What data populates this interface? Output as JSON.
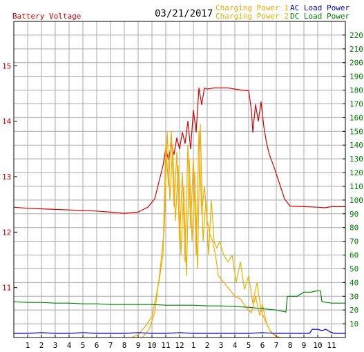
{
  "header": {
    "left_title": "Battery Voltage",
    "date": "03/21/2017",
    "legend_charging1": "Charging Power 1",
    "legend_charging2": "Charging Power 2",
    "legend_ac": "AC Load Power",
    "legend_dc": "DC Load Power"
  },
  "colors": {
    "battery": "#d40000",
    "charging1": "#ffa500",
    "charging2": "#e6b400",
    "ac": "#0000cc",
    "dc": "#008000",
    "grid": "#a8a8a8",
    "axis_left": "#cc0000",
    "axis_right": "#008000"
  },
  "chart_data": {
    "type": "line",
    "x_range": [
      0,
      24
    ],
    "x_tick_labels": [
      "1",
      "2",
      "3",
      "4",
      "5",
      "6",
      "7",
      "8",
      "9",
      "10",
      "11",
      "12",
      "1",
      "2",
      "3",
      "4",
      "5",
      "6",
      "7",
      "8",
      "9",
      "10",
      "11"
    ],
    "y_left": {
      "range": [
        10.1,
        15.8
      ],
      "tick_labels": [
        "11",
        "12",
        "13",
        "14",
        "15"
      ]
    },
    "y_right": {
      "range": [
        0,
        230
      ],
      "tick_labels": [
        "10",
        "20",
        "30",
        "40",
        "50",
        "60",
        "70",
        "80",
        "90",
        "100",
        "110",
        "120",
        "130",
        "140",
        "150",
        "160",
        "170",
        "180",
        "190",
        "200",
        "210",
        "220"
      ]
    },
    "grid": true,
    "series": [
      {
        "name": "Battery Voltage",
        "axis": "left",
        "color_key": "battery",
        "points": [
          [
            0,
            12.45
          ],
          [
            1,
            12.43
          ],
          [
            2,
            12.42
          ],
          [
            3,
            12.41
          ],
          [
            4,
            12.4
          ],
          [
            5,
            12.39
          ],
          [
            6,
            12.38
          ],
          [
            7,
            12.36
          ],
          [
            8,
            12.34
          ],
          [
            9,
            12.36
          ],
          [
            9.7,
            12.45
          ],
          [
            10.2,
            12.6
          ],
          [
            10.5,
            12.9
          ],
          [
            10.8,
            13.2
          ],
          [
            11.0,
            13.5
          ],
          [
            11.2,
            13.3
          ],
          [
            11.4,
            13.6
          ],
          [
            11.6,
            13.4
          ],
          [
            11.8,
            13.7
          ],
          [
            12.0,
            13.5
          ],
          [
            12.2,
            13.8
          ],
          [
            12.4,
            13.6
          ],
          [
            12.6,
            14.0
          ],
          [
            12.8,
            13.5
          ],
          [
            13.0,
            14.2
          ],
          [
            13.2,
            13.8
          ],
          [
            13.4,
            14.6
          ],
          [
            13.6,
            14.3
          ],
          [
            13.8,
            14.6
          ],
          [
            14.0,
            14.58
          ],
          [
            14.5,
            14.6
          ],
          [
            15,
            14.6
          ],
          [
            15.5,
            14.6
          ],
          [
            16,
            14.58
          ],
          [
            16.5,
            14.56
          ],
          [
            17,
            14.55
          ],
          [
            17.2,
            14.2
          ],
          [
            17.3,
            13.8
          ],
          [
            17.5,
            14.3
          ],
          [
            17.7,
            14.0
          ],
          [
            17.9,
            14.35
          ],
          [
            18.1,
            13.9
          ],
          [
            18.3,
            13.6
          ],
          [
            18.5,
            13.4
          ],
          [
            18.8,
            13.2
          ],
          [
            19.2,
            12.9
          ],
          [
            19.6,
            12.6
          ],
          [
            20,
            12.47
          ],
          [
            21,
            12.46
          ],
          [
            22,
            12.45
          ],
          [
            22.5,
            12.44
          ],
          [
            23,
            12.46
          ],
          [
            24,
            12.46
          ]
        ]
      },
      {
        "name": "Charging Power 1",
        "axis": "right",
        "color_key": "charging1",
        "points": [
          [
            8.5,
            0
          ],
          [
            9,
            2
          ],
          [
            9.5,
            8
          ],
          [
            10,
            15
          ],
          [
            10.5,
            40
          ],
          [
            10.8,
            60
          ],
          [
            11.0,
            140
          ],
          [
            11.2,
            110
          ],
          [
            11.4,
            150
          ],
          [
            11.6,
            95
          ],
          [
            11.8,
            135
          ],
          [
            12.0,
            70
          ],
          [
            12.2,
            120
          ],
          [
            12.4,
            55
          ],
          [
            12.6,
            140
          ],
          [
            12.8,
            80
          ],
          [
            13.0,
            130
          ],
          [
            13.2,
            60
          ],
          [
            13.4,
            150
          ],
          [
            13.6,
            90
          ],
          [
            13.8,
            110
          ],
          [
            14.0,
            85
          ],
          [
            14.2,
            75
          ],
          [
            14.4,
            70
          ],
          [
            14.6,
            60
          ],
          [
            14.8,
            45
          ],
          [
            15.2,
            40
          ],
          [
            15.6,
            35
          ],
          [
            16.0,
            30
          ],
          [
            16.4,
            28
          ],
          [
            16.8,
            22
          ],
          [
            17.2,
            18
          ],
          [
            17.5,
            30
          ],
          [
            17.8,
            16
          ],
          [
            18.0,
            24
          ],
          [
            18.3,
            10
          ],
          [
            18.6,
            4
          ],
          [
            19.0,
            1
          ],
          [
            19.3,
            0
          ]
        ]
      },
      {
        "name": "Charging Power 2",
        "axis": "right",
        "color_key": "charging2",
        "points": [
          [
            9.3,
            0
          ],
          [
            9.8,
            6
          ],
          [
            10.2,
            18
          ],
          [
            10.6,
            50
          ],
          [
            10.9,
            80
          ],
          [
            11.1,
            150
          ],
          [
            11.3,
            100
          ],
          [
            11.5,
            140
          ],
          [
            11.7,
            85
          ],
          [
            11.9,
            125
          ],
          [
            12.1,
            60
          ],
          [
            12.3,
            110
          ],
          [
            12.5,
            45
          ],
          [
            12.7,
            130
          ],
          [
            12.9,
            70
          ],
          [
            13.1,
            120
          ],
          [
            13.3,
            50
          ],
          [
            13.5,
            155
          ],
          [
            13.7,
            70
          ],
          [
            13.9,
            100
          ],
          [
            14.1,
            60
          ],
          [
            14.3,
            100
          ],
          [
            14.5,
            70
          ],
          [
            14.7,
            65
          ],
          [
            14.9,
            70
          ],
          [
            15.2,
            60
          ],
          [
            15.5,
            55
          ],
          [
            15.8,
            60
          ],
          [
            16.1,
            40
          ],
          [
            16.4,
            55
          ],
          [
            16.7,
            35
          ],
          [
            17.0,
            45
          ],
          [
            17.3,
            25
          ],
          [
            17.6,
            40
          ],
          [
            17.9,
            20
          ],
          [
            18.2,
            12
          ],
          [
            18.5,
            6
          ],
          [
            18.8,
            2
          ],
          [
            19.1,
            0
          ]
        ]
      },
      {
        "name": "AC Load Power",
        "axis": "right",
        "color_key": "ac",
        "points": [
          [
            0,
            3
          ],
          [
            1,
            3
          ],
          [
            2,
            3.5
          ],
          [
            3,
            3
          ],
          [
            4,
            3
          ],
          [
            5,
            3.5
          ],
          [
            6,
            3
          ],
          [
            7,
            3
          ],
          [
            8,
            3
          ],
          [
            9,
            3.5
          ],
          [
            10,
            3
          ],
          [
            11,
            3
          ],
          [
            12,
            3.5
          ],
          [
            13,
            3
          ],
          [
            14,
            3
          ],
          [
            15,
            3
          ],
          [
            16,
            3
          ],
          [
            17,
            3
          ],
          [
            18,
            3.5
          ],
          [
            19,
            3
          ],
          [
            20,
            3
          ],
          [
            21,
            3
          ],
          [
            21.4,
            3
          ],
          [
            21.6,
            6
          ],
          [
            22,
            6
          ],
          [
            22.3,
            5
          ],
          [
            22.6,
            6
          ],
          [
            22.9,
            4
          ],
          [
            23.2,
            3
          ],
          [
            24,
            3
          ]
        ]
      },
      {
        "name": "DC Load Power",
        "axis": "right",
        "color_key": "dc",
        "points": [
          [
            0,
            26
          ],
          [
            1,
            25.5
          ],
          [
            2,
            25.5
          ],
          [
            3,
            25
          ],
          [
            4,
            25
          ],
          [
            5,
            24.5
          ],
          [
            6,
            24.5
          ],
          [
            7,
            24
          ],
          [
            8,
            24
          ],
          [
            9,
            24
          ],
          [
            10,
            24
          ],
          [
            11,
            23.5
          ],
          [
            12,
            23.5
          ],
          [
            13,
            23.5
          ],
          [
            14,
            23
          ],
          [
            15,
            23
          ],
          [
            16,
            22.5
          ],
          [
            17,
            22
          ],
          [
            18,
            21
          ],
          [
            19,
            20
          ],
          [
            19.5,
            19
          ],
          [
            19.7,
            18.5
          ],
          [
            19.8,
            30
          ],
          [
            20.5,
            30
          ],
          [
            21,
            33
          ],
          [
            21.5,
            33
          ],
          [
            22,
            34
          ],
          [
            22.2,
            34
          ],
          [
            22.3,
            26
          ],
          [
            23,
            25
          ],
          [
            24,
            25
          ]
        ]
      }
    ]
  }
}
